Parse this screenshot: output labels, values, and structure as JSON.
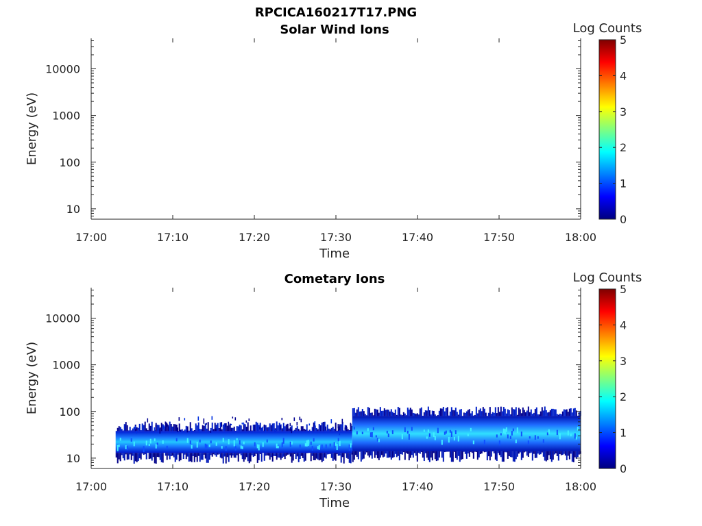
{
  "figure": {
    "title": "RPCICA160217T17.PNG"
  },
  "chart_data": [
    {
      "type": "heatmap",
      "title": "Solar Wind Ions",
      "xlabel": "Time",
      "ylabel": "Energy (eV)",
      "x_ticks": [
        "17:00",
        "17:10",
        "17:20",
        "17:30",
        "17:40",
        "17:50",
        "18:00"
      ],
      "x_range_minutes": [
        0,
        60
      ],
      "y_scale": "log",
      "y_ticks": [
        10,
        100,
        1000,
        10000
      ],
      "y_tick_labels": [
        "10",
        "100",
        "1000",
        "10000"
      ],
      "ylim": [
        6,
        45000
      ],
      "colorbar": {
        "label": "Log Counts",
        "ticks": [
          "0",
          "1",
          "2",
          "3",
          "4",
          "5"
        ],
        "range": [
          0,
          5
        ],
        "colormap": "jet"
      },
      "data": []
    },
    {
      "type": "heatmap",
      "title": "Cometary Ions",
      "xlabel": "Time",
      "ylabel": "Energy (eV)",
      "x_ticks": [
        "17:00",
        "17:10",
        "17:20",
        "17:30",
        "17:40",
        "17:50",
        "18:00"
      ],
      "x_range_minutes": [
        0,
        60
      ],
      "y_scale": "log",
      "y_ticks": [
        10,
        100,
        1000,
        10000
      ],
      "y_tick_labels": [
        "10",
        "100",
        "1000",
        "10000"
      ],
      "ylim": [
        6,
        45000
      ],
      "colorbar": {
        "label": "Log Counts",
        "ticks": [
          "0",
          "1",
          "2",
          "3",
          "4",
          "5"
        ],
        "range": [
          0,
          5
        ],
        "colormap": "jet"
      },
      "data": [
        {
          "t_start": "17:03",
          "t_end": "17:32",
          "e_low": 13,
          "e_high": 38,
          "peak_energy": 22,
          "peak_log_counts": 1.5
        },
        {
          "t_start": "17:05",
          "t_end": "17:32",
          "e_low": 38,
          "e_high": 80,
          "sparse": true,
          "log_counts": 0.3
        },
        {
          "t_start": "17:32",
          "t_end": "18:00",
          "e_low": 14,
          "e_high": 80,
          "peak_energy": 28,
          "peak_log_counts": 1.8
        }
      ]
    }
  ]
}
